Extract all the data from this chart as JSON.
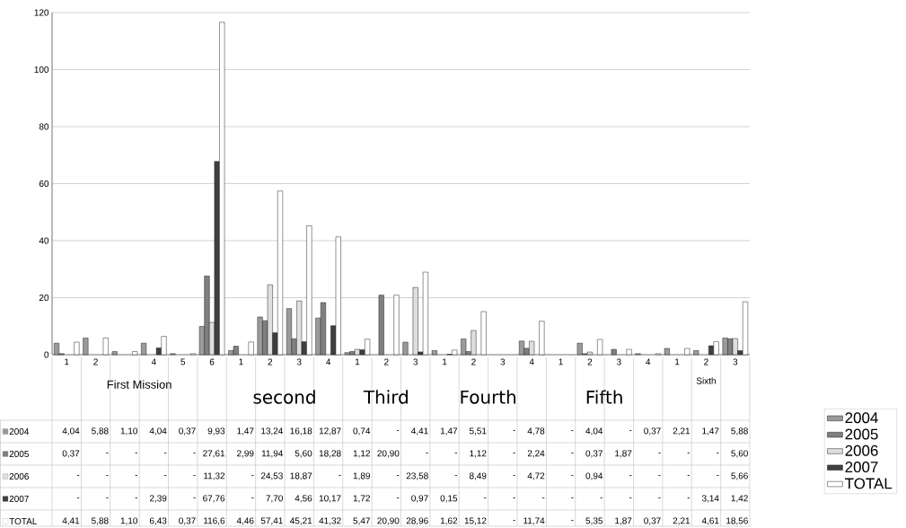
{
  "chart_data": {
    "type": "bar",
    "categories": [
      "1",
      "2",
      null,
      "4",
      "5",
      "6",
      "1",
      "2",
      "3",
      "4",
      "1",
      "2",
      "3",
      "1",
      "2",
      "3",
      "4",
      "1",
      "2",
      "3",
      "4",
      "1",
      "2",
      "3"
    ],
    "series": [
      {
        "name": "2004",
        "color": "#9a9a9a",
        "values": [
          4.04,
          5.88,
          1.1,
          4.04,
          0.37,
          9.93,
          1.47,
          13.24,
          16.18,
          12.87,
          0.74,
          null,
          4.41,
          1.47,
          5.51,
          null,
          4.78,
          null,
          4.04,
          null,
          0.37,
          2.21,
          1.47,
          5.88
        ],
        "value_labels": [
          "4,04",
          "5,88",
          "1,10",
          "4,04",
          "0,37",
          "9,93",
          "1,47",
          "13,24",
          "16,18",
          "12,87",
          "0,74",
          "-",
          "4,41",
          "1,47",
          "5,51",
          "-",
          "4,78",
          "-",
          "4,04",
          "-",
          "0,37",
          "2,21",
          "1,47",
          "5,88"
        ]
      },
      {
        "name": "2005",
        "color": "#7f7f7f",
        "values": [
          0.37,
          null,
          null,
          null,
          null,
          27.61,
          2.99,
          11.94,
          5.6,
          18.28,
          1.12,
          20.9,
          null,
          null,
          1.12,
          null,
          2.24,
          null,
          0.37,
          1.87,
          null,
          null,
          null,
          5.6
        ],
        "value_labels": [
          "0,37",
          "-",
          "-",
          "-",
          "-",
          "27,61",
          "2,99",
          "11,94",
          "5,60",
          "18,28",
          "1,12",
          "20,90",
          "-",
          "-",
          "1,12",
          "-",
          "2,24",
          "-",
          "0,37",
          "1,87",
          "-",
          "-",
          "-",
          "5,60"
        ]
      },
      {
        "name": "2006",
        "color": "#dedede",
        "values": [
          null,
          null,
          null,
          null,
          null,
          11.32,
          null,
          24.53,
          18.87,
          null,
          1.89,
          null,
          23.58,
          null,
          8.49,
          null,
          4.72,
          null,
          0.94,
          null,
          null,
          null,
          null,
          5.66
        ],
        "value_labels": [
          "-",
          "-",
          "-",
          "-",
          "-",
          "11,32",
          "-",
          "24,53",
          "18,87",
          "-",
          "1,89",
          "-",
          "23,58",
          "-",
          "8,49",
          "-",
          "4,72",
          "-",
          "0,94",
          "-",
          "-",
          "-",
          "-",
          "5,66"
        ]
      },
      {
        "name": "2007",
        "color": "#3f3f3f",
        "values": [
          null,
          null,
          null,
          2.39,
          null,
          67.76,
          null,
          7.7,
          4.56,
          10.17,
          1.72,
          null,
          0.97,
          0.15,
          null,
          null,
          null,
          null,
          null,
          null,
          null,
          null,
          3.14,
          1.42
        ],
        "value_labels": [
          "-",
          "-",
          "-",
          "2,39",
          "-",
          "67,76",
          "-",
          "7,70",
          "4,56",
          "10,17",
          "1,72",
          "-",
          "0,97",
          "0,15",
          "-",
          "-",
          "-",
          "-",
          "-",
          "-",
          "-",
          "-",
          "3,14",
          "1,42"
        ]
      },
      {
        "name": "TOTAL",
        "color": "#ffffff",
        "values": [
          4.41,
          5.88,
          1.1,
          6.43,
          0.37,
          116.6,
          4.46,
          57.41,
          45.21,
          41.32,
          5.47,
          20.9,
          28.96,
          1.62,
          15.12,
          null,
          11.74,
          null,
          5.35,
          1.87,
          0.37,
          2.21,
          4.61,
          18.56
        ],
        "value_labels": [
          "4,41",
          "5,88",
          "1,10",
          "6,43",
          "0,37",
          "116,6",
          "4,46",
          "57,41",
          "45,21",
          "41,32",
          "5,47",
          "20,90",
          "28,96",
          "1,62",
          "15,12",
          "-",
          "11,74",
          "-",
          "5,35",
          "1,87",
          "0,37",
          "2,21",
          "4,61",
          "18,56"
        ]
      }
    ],
    "annotations": [
      "First Mission",
      "second",
      "Third",
      "Fourth",
      "Fifth",
      "Sixth"
    ],
    "ylim": [
      0,
      120
    ],
    "yticks": [
      0,
      20,
      40,
      60,
      80,
      100,
      120
    ],
    "grid": "y",
    "legend": "right"
  }
}
